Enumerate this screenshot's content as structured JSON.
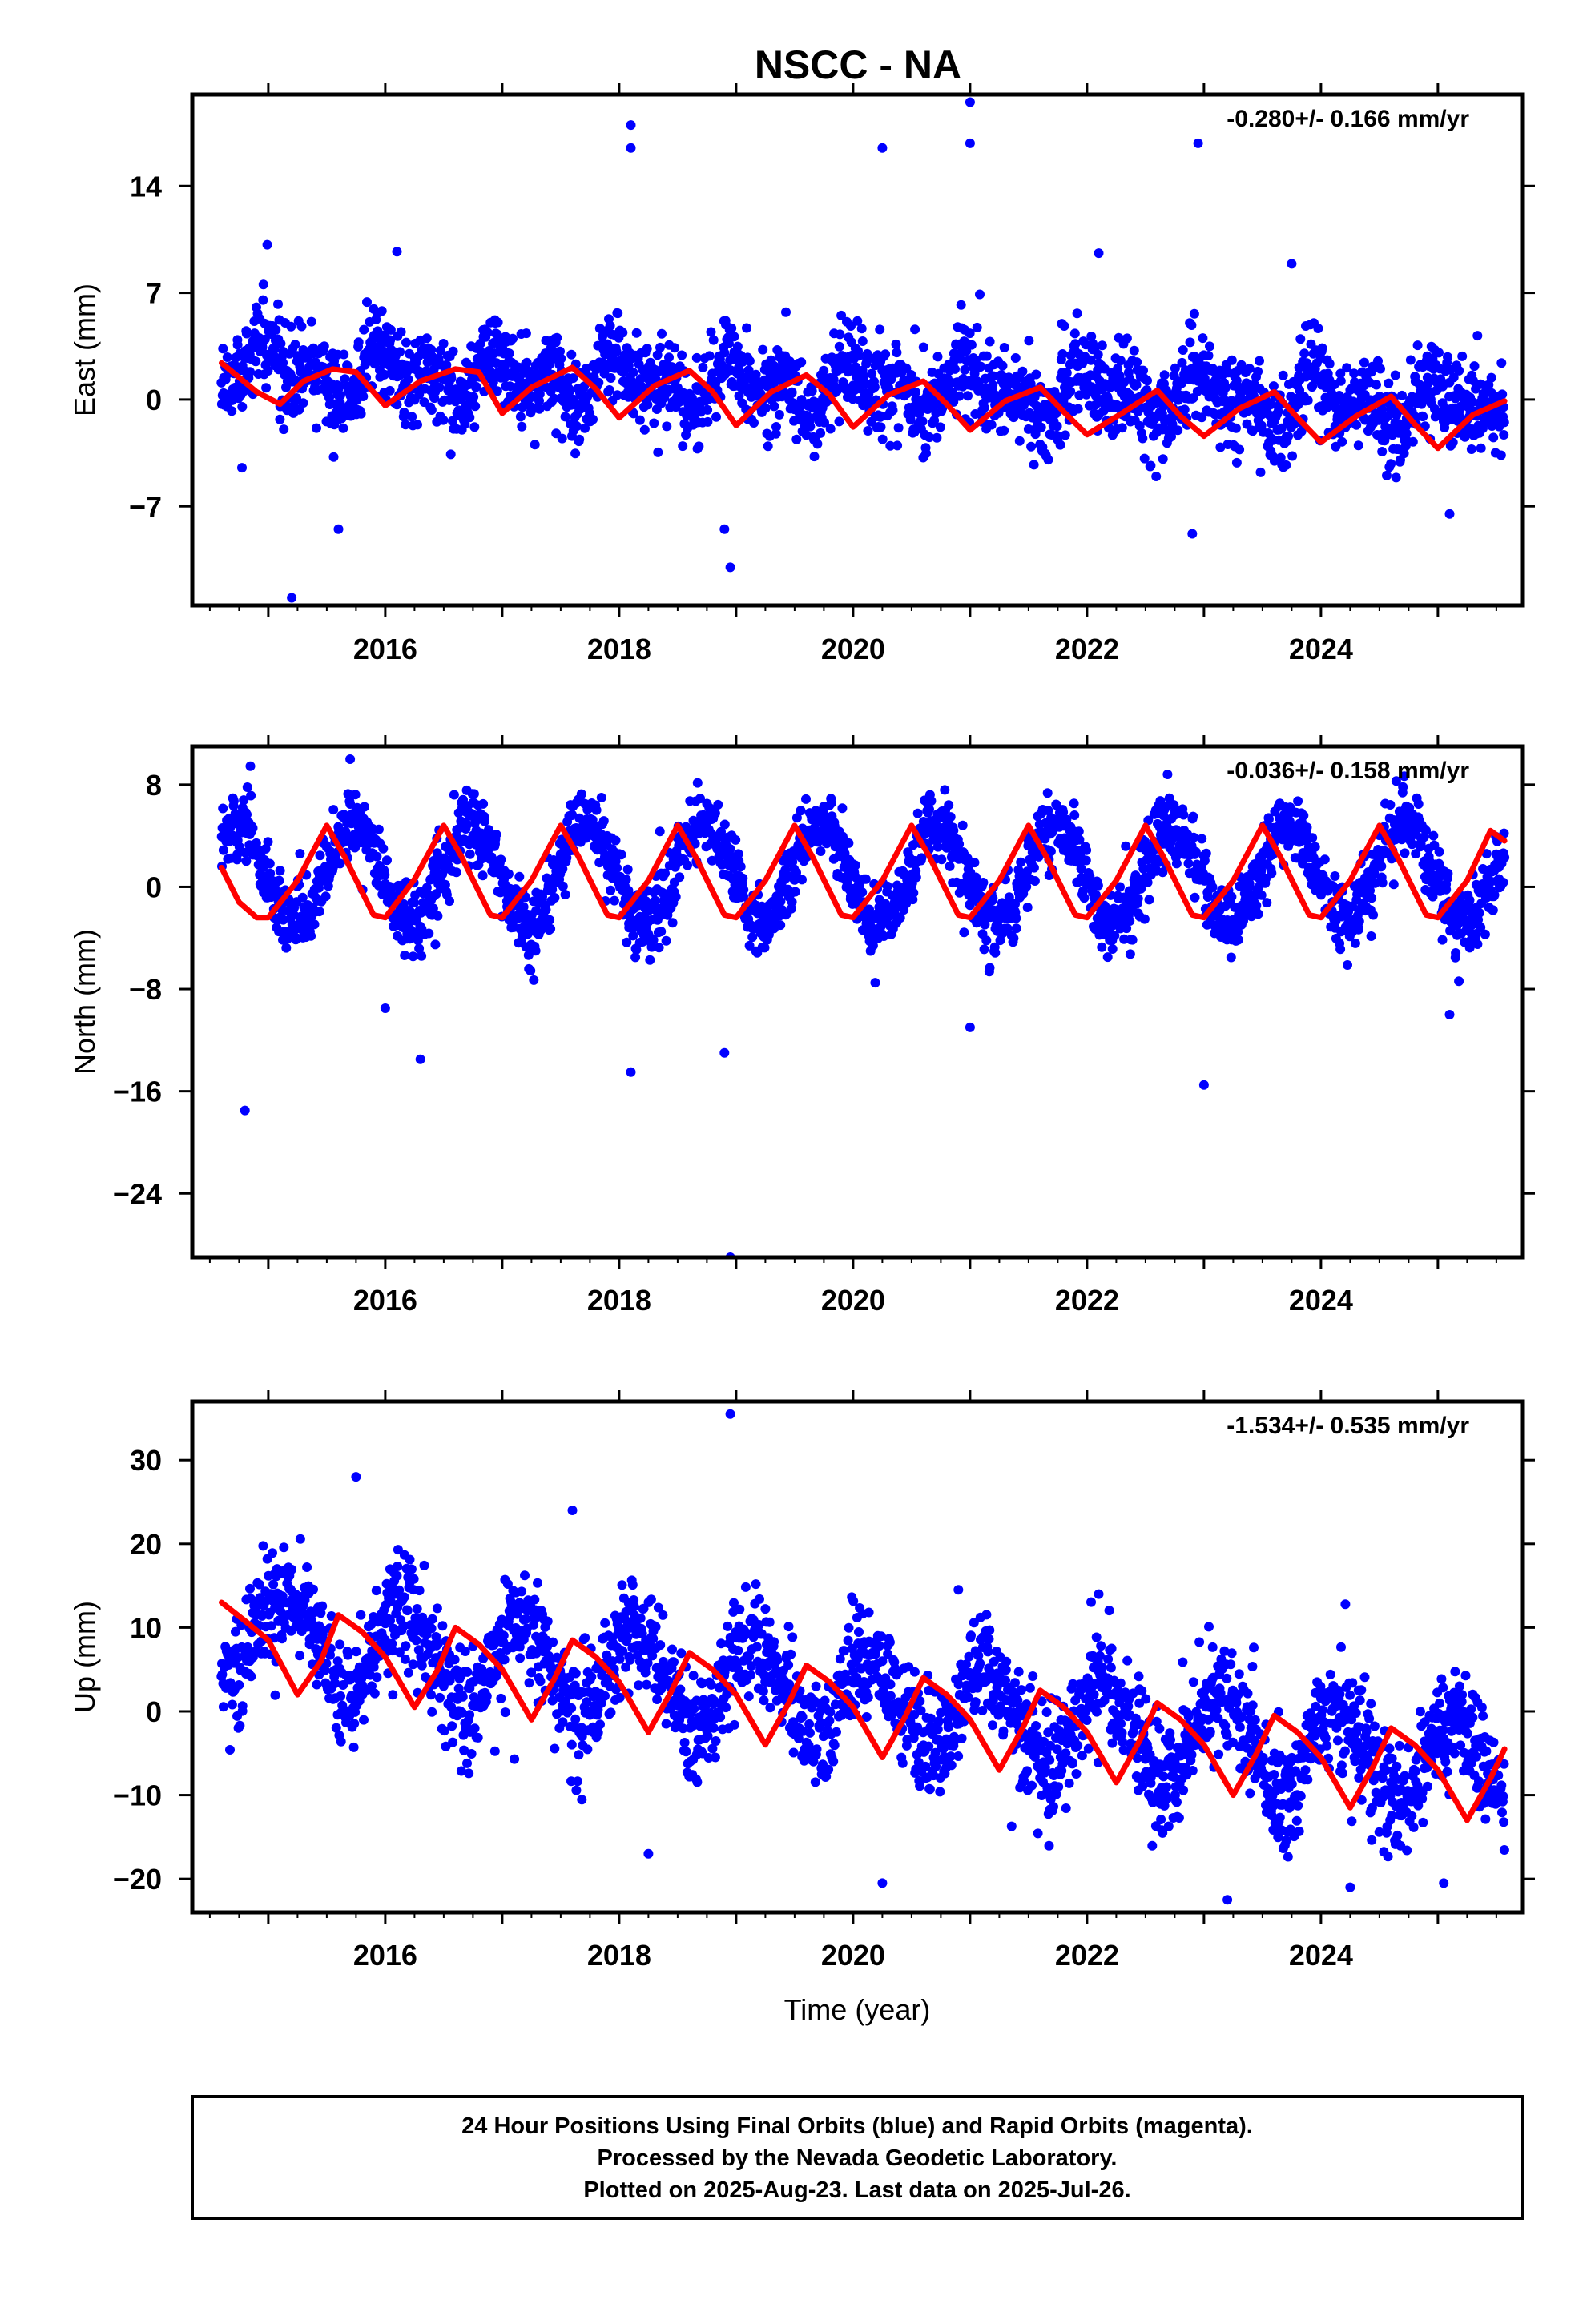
{
  "title": "NSCC - NA",
  "colors": {
    "final_orbits": "#0000ff",
    "model_fit": "#ff0000"
  },
  "footer": {
    "line1": "24 Hour Positions Using Final Orbits (blue) and Rapid Orbits (magenta).",
    "line2": "Processed by the Nevada Geodetic Laboratory.",
    "line3": "Plotted on 2025-Aug-23. Last data on 2025-Jul-26."
  },
  "chart_data": [
    {
      "type": "scatter",
      "ylabel": "East (mm)",
      "xlabel": "",
      "rate_text": "-0.280+/- 0.166 mm/yr",
      "xlim": [
        2014.35,
        2025.72
      ],
      "ylim": [
        -13.5,
        20.0
      ],
      "yticks": [
        14,
        7,
        0,
        -7
      ],
      "ytick_labels": [
        "14",
        "7",
        "0",
        "−7"
      ],
      "xticks": [
        2016,
        2018,
        2020,
        2022,
        2024
      ],
      "xtick_labels": [
        "2016",
        "2018",
        "2020",
        "2022",
        "2024"
      ],
      "series_points": {
        "x_range": [
          2014.6,
          2025.57
        ],
        "trend": [
          2014.6,
          2.0,
          2025.57,
          -0.5
        ],
        "annual": [
          1.0,
          0.2
        ],
        "semiannual": [
          0.5,
          -0.8
        ],
        "noise_sd": 1.4,
        "outliers": [
          [
            2015.2,
            -13
          ],
          [
            2015.6,
            -8.5
          ],
          [
            2016.1,
            9.7
          ],
          [
            2018.1,
            18
          ],
          [
            2018.1,
            16.5
          ],
          [
            2018.95,
            -11
          ],
          [
            2018.9,
            -8.5
          ],
          [
            2020.25,
            16.5
          ],
          [
            2021.0,
            19.5
          ],
          [
            2021.0,
            16.8
          ],
          [
            2022.1,
            9.6
          ],
          [
            2022.95,
            16.8
          ],
          [
            2022.9,
            -8.8
          ],
          [
            2023.75,
            8.9
          ],
          [
            2025.1,
            -7.5
          ]
        ]
      },
      "series_fit": [
        [
          2014.6,
          2.4
        ],
        [
          2014.9,
          0.5
        ],
        [
          2015.1,
          -0.3
        ],
        [
          2015.3,
          1.2
        ],
        [
          2015.55,
          2.0
        ],
        [
          2015.75,
          1.8
        ],
        [
          2016.0,
          -0.4
        ],
        [
          2016.3,
          1.2
        ],
        [
          2016.6,
          2.0
        ],
        [
          2016.8,
          1.8
        ],
        [
          2017.0,
          -0.9
        ],
        [
          2017.25,
          0.8
        ],
        [
          2017.6,
          2.1
        ],
        [
          2017.8,
          0.7
        ],
        [
          2018.0,
          -1.2
        ],
        [
          2018.3,
          0.9
        ],
        [
          2018.6,
          1.9
        ],
        [
          2018.8,
          0.5
        ],
        [
          2019.0,
          -1.7
        ],
        [
          2019.3,
          0.5
        ],
        [
          2019.6,
          1.6
        ],
        [
          2019.8,
          0.3
        ],
        [
          2020.0,
          -1.8
        ],
        [
          2020.3,
          0.3
        ],
        [
          2020.6,
          1.2
        ],
        [
          2020.8,
          -0.3
        ],
        [
          2021.0,
          -2.0
        ],
        [
          2021.3,
          -0.1
        ],
        [
          2021.6,
          0.8
        ],
        [
          2021.8,
          -0.8
        ],
        [
          2022.0,
          -2.3
        ],
        [
          2022.3,
          -0.9
        ],
        [
          2022.6,
          0.6
        ],
        [
          2022.8,
          -1.1
        ],
        [
          2023.0,
          -2.4
        ],
        [
          2023.3,
          -0.6
        ],
        [
          2023.6,
          0.5
        ],
        [
          2023.8,
          -1.2
        ],
        [
          2024.0,
          -2.8
        ],
        [
          2024.3,
          -1.1
        ],
        [
          2024.6,
          0.2
        ],
        [
          2024.8,
          -1.6
        ],
        [
          2025.0,
          -3.2
        ],
        [
          2025.3,
          -1.0
        ],
        [
          2025.57,
          -0.1
        ]
      ]
    },
    {
      "type": "scatter",
      "ylabel": "North (mm)",
      "xlabel": "",
      "rate_text": "-0.036+/- 0.158 mm/yr",
      "xlim": [
        2014.35,
        2025.72
      ],
      "ylim": [
        -29.0,
        11.0
      ],
      "yticks": [
        8,
        0,
        -8,
        -16,
        -24
      ],
      "ytick_labels": [
        "8",
        "0",
        "−8",
        "−16",
        "−24"
      ],
      "xticks": [
        2016,
        2018,
        2020,
        2022,
        2024
      ],
      "xtick_labels": [
        "2016",
        "2018",
        "2020",
        "2022",
        "2024"
      ],
      "series_points": {
        "x_range": [
          2014.6,
          2025.57
        ],
        "trend": [
          2014.6,
          1.0,
          2025.57,
          1.0
        ],
        "annual": [
          -0.6,
          -3.8
        ],
        "semiannual": [
          0.0,
          0.0
        ],
        "noise_sd": 1.3,
        "outliers": [
          [
            2014.8,
            -17.5
          ],
          [
            2015.7,
            10
          ],
          [
            2016.0,
            -9.5
          ],
          [
            2016.3,
            -13.5
          ],
          [
            2018.1,
            -14.5
          ],
          [
            2018.9,
            -13
          ],
          [
            2018.95,
            -29
          ],
          [
            2021.0,
            -11
          ],
          [
            2023.0,
            -15.5
          ],
          [
            2025.1,
            -10
          ]
        ]
      },
      "series_fit": [
        [
          2014.6,
          1.5
        ],
        [
          2014.75,
          -1.2
        ],
        [
          2014.9,
          -2.4
        ],
        [
          2015.0,
          -2.4
        ],
        [
          2015.25,
          0.5
        ],
        [
          2015.5,
          4.8
        ],
        [
          2015.65,
          2.4
        ],
        [
          2015.9,
          -2.2
        ],
        [
          2016.0,
          -2.4
        ],
        [
          2016.25,
          0.6
        ],
        [
          2016.5,
          4.8
        ],
        [
          2016.65,
          2.4
        ],
        [
          2016.9,
          -2.2
        ],
        [
          2017.0,
          -2.4
        ],
        [
          2017.25,
          0.5
        ],
        [
          2017.5,
          4.8
        ],
        [
          2017.65,
          2.4
        ],
        [
          2017.9,
          -2.2
        ],
        [
          2018.0,
          -2.4
        ],
        [
          2018.25,
          0.5
        ],
        [
          2018.5,
          4.8
        ],
        [
          2018.65,
          2.4
        ],
        [
          2018.9,
          -2.2
        ],
        [
          2019.0,
          -2.4
        ],
        [
          2019.25,
          0.5
        ],
        [
          2019.5,
          4.8
        ],
        [
          2019.65,
          2.4
        ],
        [
          2019.9,
          -2.2
        ],
        [
          2020.0,
          -2.4
        ],
        [
          2020.25,
          0.5
        ],
        [
          2020.5,
          4.8
        ],
        [
          2020.65,
          2.4
        ],
        [
          2020.9,
          -2.2
        ],
        [
          2021.0,
          -2.4
        ],
        [
          2021.25,
          0.5
        ],
        [
          2021.5,
          4.8
        ],
        [
          2021.65,
          2.4
        ],
        [
          2021.9,
          -2.2
        ],
        [
          2022.0,
          -2.4
        ],
        [
          2022.25,
          0.5
        ],
        [
          2022.5,
          4.8
        ],
        [
          2022.65,
          2.4
        ],
        [
          2022.9,
          -2.2
        ],
        [
          2023.0,
          -2.4
        ],
        [
          2023.25,
          0.5
        ],
        [
          2023.5,
          4.8
        ],
        [
          2023.65,
          2.4
        ],
        [
          2023.9,
          -2.2
        ],
        [
          2024.0,
          -2.4
        ],
        [
          2024.25,
          0.5
        ],
        [
          2024.5,
          4.8
        ],
        [
          2024.65,
          2.4
        ],
        [
          2024.9,
          -2.2
        ],
        [
          2025.0,
          -2.4
        ],
        [
          2025.25,
          0.5
        ],
        [
          2025.45,
          4.4
        ],
        [
          2025.57,
          3.6
        ]
      ]
    },
    {
      "type": "scatter",
      "ylabel": "Up (mm)",
      "xlabel": "Time (year)",
      "rate_text": "-1.534+/- 0.535 mm/yr",
      "xlim": [
        2014.35,
        2025.72
      ],
      "ylim": [
        -24.0,
        37.0
      ],
      "yticks": [
        30,
        20,
        10,
        0,
        -10,
        -20
      ],
      "ytick_labels": [
        "30",
        "20",
        "10",
        "0",
        "−10",
        "−20"
      ],
      "xticks": [
        2016,
        2018,
        2020,
        2022,
        2024
      ],
      "xtick_labels": [
        "2016",
        "2018",
        "2020",
        "2022",
        "2024"
      ],
      "series_points": {
        "x_range": [
          2014.6,
          2025.57
        ],
        "trend": [
          2014.6,
          9.5,
          2025.57,
          -7.0
        ],
        "annual": [
          3.0,
          4.5
        ],
        "semiannual": [
          0.8,
          0.0
        ],
        "noise_sd": 3.2,
        "outliers": [
          [
            2015.75,
            28
          ],
          [
            2017.6,
            24
          ],
          [
            2018.95,
            35.5
          ],
          [
            2020.25,
            -20.5
          ],
          [
            2020.9,
            14.5
          ],
          [
            2022.1,
            14
          ],
          [
            2023.2,
            -22.5
          ],
          [
            2024.25,
            -21
          ],
          [
            2025.05,
            -20.5
          ],
          [
            2018.25,
            -17
          ]
        ]
      },
      "series_fit": [
        [
          2014.6,
          13.0
        ],
        [
          2014.8,
          10.8
        ],
        [
          2015.0,
          8.5
        ],
        [
          2015.25,
          2.0
        ],
        [
          2015.45,
          6.0
        ],
        [
          2015.6,
          11.5
        ],
        [
          2015.8,
          9.5
        ],
        [
          2016.0,
          6.5
        ],
        [
          2016.25,
          0.5
        ],
        [
          2016.45,
          5.0
        ],
        [
          2016.6,
          10.0
        ],
        [
          2016.8,
          8.0
        ],
        [
          2017.0,
          5.0
        ],
        [
          2017.25,
          -1.0
        ],
        [
          2017.45,
          4.0
        ],
        [
          2017.6,
          8.5
        ],
        [
          2017.8,
          6.5
        ],
        [
          2018.0,
          3.5
        ],
        [
          2018.25,
          -2.5
        ],
        [
          2018.45,
          2.5
        ],
        [
          2018.6,
          7.0
        ],
        [
          2018.8,
          5.0
        ],
        [
          2019.0,
          2.0
        ],
        [
          2019.25,
          -4.0
        ],
        [
          2019.45,
          1.0
        ],
        [
          2019.6,
          5.5
        ],
        [
          2019.8,
          3.5
        ],
        [
          2020.0,
          0.5
        ],
        [
          2020.25,
          -5.5
        ],
        [
          2020.45,
          -0.5
        ],
        [
          2020.6,
          4.0
        ],
        [
          2020.8,
          2.0
        ],
        [
          2021.0,
          -1.0
        ],
        [
          2021.25,
          -7.0
        ],
        [
          2021.45,
          -2.0
        ],
        [
          2021.6,
          2.5
        ],
        [
          2021.8,
          0.5
        ],
        [
          2022.0,
          -2.5
        ],
        [
          2022.25,
          -8.5
        ],
        [
          2022.45,
          -3.5
        ],
        [
          2022.6,
          1.0
        ],
        [
          2022.8,
          -1.0
        ],
        [
          2023.0,
          -4.0
        ],
        [
          2023.25,
          -10.0
        ],
        [
          2023.45,
          -5.0
        ],
        [
          2023.6,
          -0.5
        ],
        [
          2023.8,
          -2.5
        ],
        [
          2024.0,
          -5.5
        ],
        [
          2024.25,
          -11.5
        ],
        [
          2024.45,
          -6.5
        ],
        [
          2024.6,
          -2.0
        ],
        [
          2024.8,
          -4.0
        ],
        [
          2025.0,
          -7.0
        ],
        [
          2025.25,
          -13.0
        ],
        [
          2025.45,
          -8.0
        ],
        [
          2025.57,
          -4.5
        ]
      ]
    }
  ]
}
